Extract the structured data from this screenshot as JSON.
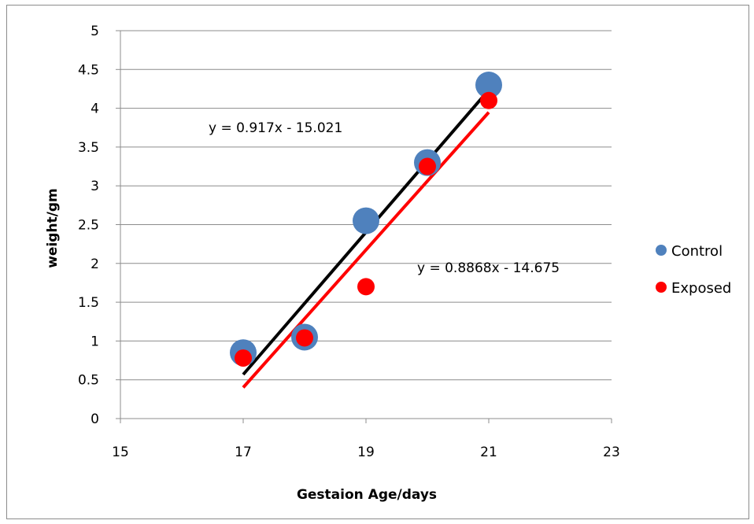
{
  "chart_data": {
    "type": "scatter",
    "xlabel": "Gestaion Age/days",
    "ylabel": "weight/gm",
    "xlim": [
      15,
      23
    ],
    "ylim": [
      0,
      5
    ],
    "x_ticks": [
      15,
      17,
      19,
      21,
      23
    ],
    "y_ticks": [
      0,
      0.5,
      1,
      1.5,
      2,
      2.5,
      3,
      3.5,
      4,
      4.5,
      5
    ],
    "grid": "horizontal",
    "legend_position": "right",
    "series": [
      {
        "name": "Control",
        "color": "#4f81bd",
        "x": [
          17,
          18,
          19,
          20,
          21
        ],
        "y": [
          0.85,
          1.05,
          2.55,
          3.3,
          4.3
        ],
        "trendline": {
          "slope": 0.917,
          "intercept": -15.021,
          "x_range": [
            17,
            21
          ],
          "color": "#000000",
          "label": "y = 0.917x - 15.021"
        }
      },
      {
        "name": "Exposed",
        "color": "#ff0000",
        "x": [
          17,
          18,
          19,
          20,
          21
        ],
        "y": [
          0.78,
          1.04,
          1.7,
          3.25,
          4.1
        ],
        "trendline": {
          "slope": 0.8868,
          "intercept": -14.675,
          "x_range": [
            17,
            21
          ],
          "color": "#ff0000",
          "label": "y = 0.8868x - 14.675"
        }
      }
    ]
  }
}
